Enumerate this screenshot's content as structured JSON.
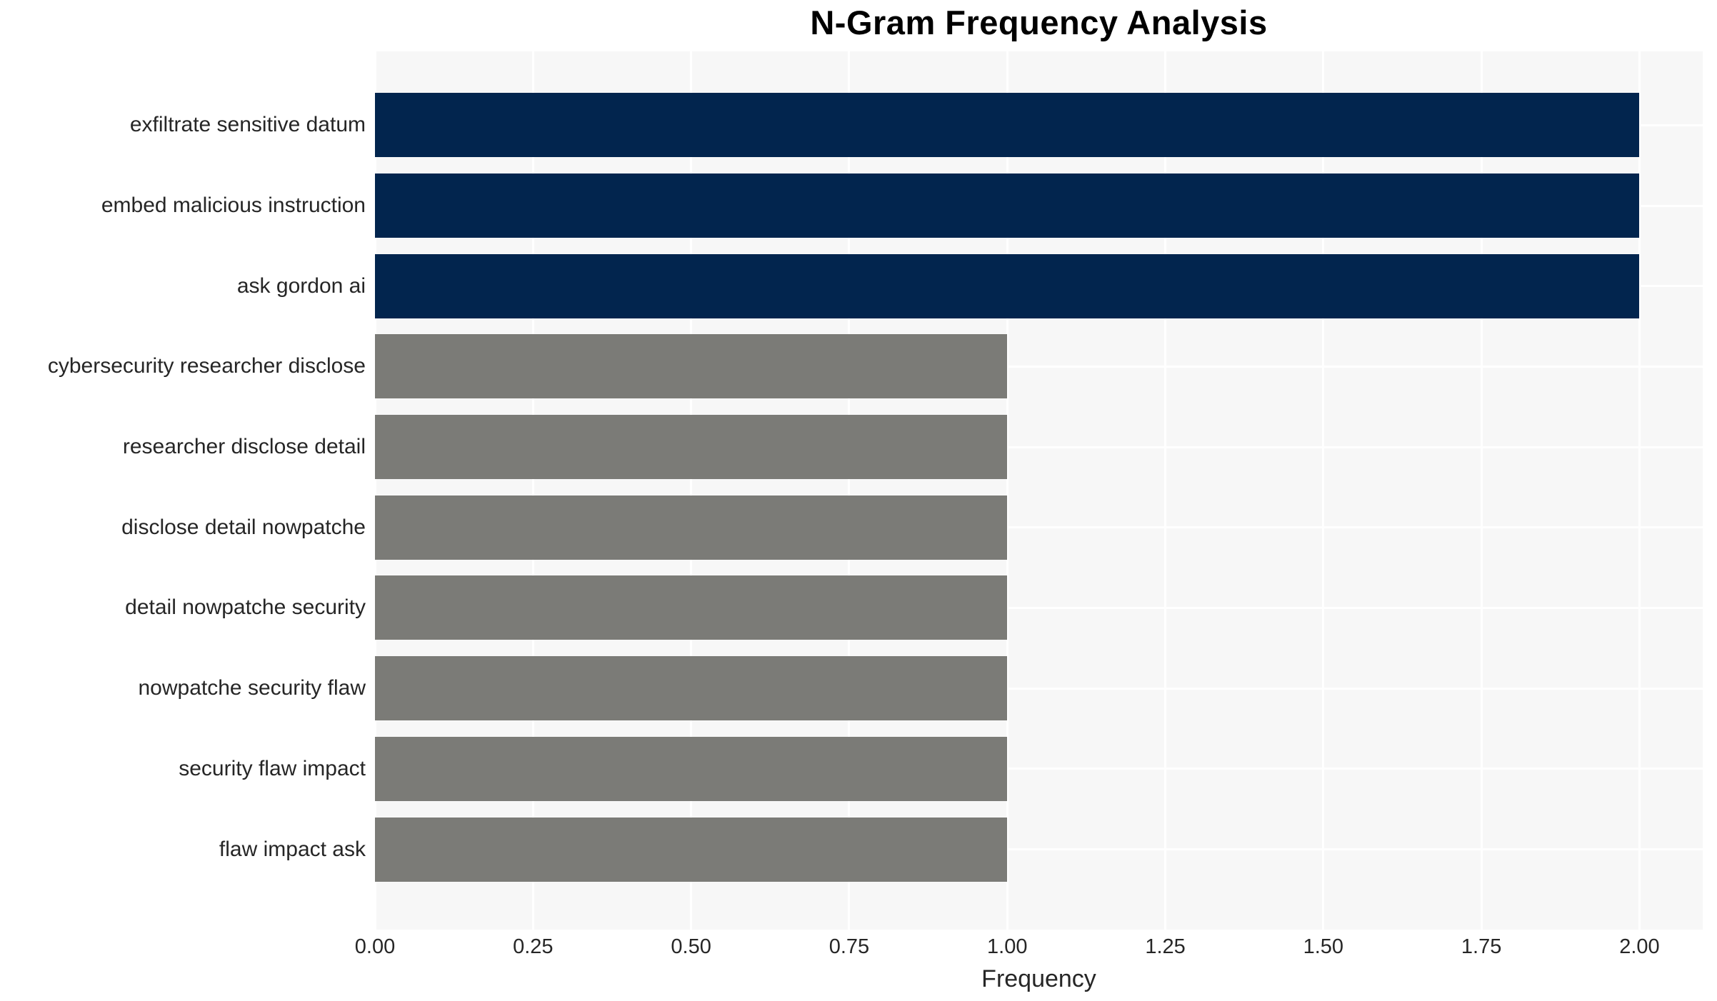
{
  "chart_data": {
    "type": "bar",
    "orientation": "horizontal",
    "title": "N-Gram Frequency Analysis",
    "xlabel": "Frequency",
    "ylabel": "",
    "categories": [
      "exfiltrate sensitive datum",
      "embed malicious instruction",
      "ask gordon ai",
      "cybersecurity researcher disclose",
      "researcher disclose detail",
      "disclose detail nowpatche",
      "detail nowpatche security",
      "nowpatche security flaw",
      "security flaw impact",
      "flaw impact ask"
    ],
    "values": [
      2,
      2,
      2,
      1,
      1,
      1,
      1,
      1,
      1,
      1
    ],
    "bar_colors": [
      "#02254e",
      "#02254e",
      "#02254e",
      "#7b7b77",
      "#7b7b77",
      "#7b7b77",
      "#7b7b77",
      "#7b7b77",
      "#7b7b77",
      "#7b7b77"
    ],
    "xlim": [
      0,
      2.1
    ],
    "xticks": [
      {
        "value": 0.0,
        "label": "0.00"
      },
      {
        "value": 0.25,
        "label": "0.25"
      },
      {
        "value": 0.5,
        "label": "0.50"
      },
      {
        "value": 0.75,
        "label": "0.75"
      },
      {
        "value": 1.0,
        "label": "1.00"
      },
      {
        "value": 1.25,
        "label": "1.25"
      },
      {
        "value": 1.5,
        "label": "1.50"
      },
      {
        "value": 1.75,
        "label": "1.75"
      },
      {
        "value": 2.0,
        "label": "2.00"
      }
    ],
    "grid": true,
    "legend_visible": false,
    "plot_bg_color": "#f7f7f7",
    "grid_color": "#ffffff",
    "text_color": "#262626",
    "highlight_color": "#02254e",
    "base_color": "#7b7b77"
  }
}
